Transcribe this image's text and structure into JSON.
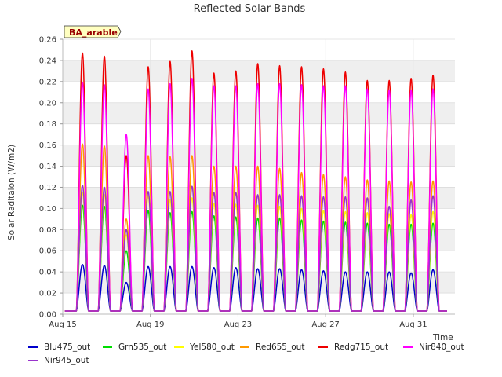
{
  "chart_data": {
    "type": "line",
    "title": "Reflected Solar Bands",
    "xlabel": "Time",
    "ylabel": "Solar Raditaion (W/m2)",
    "annotation": "BA_arable",
    "ylim": [
      0,
      0.26
    ],
    "yticks": [
      "0.00",
      "0.02",
      "0.04",
      "0.06",
      "0.08",
      "0.10",
      "0.12",
      "0.14",
      "0.16",
      "0.18",
      "0.20",
      "0.22",
      "0.24",
      "0.26"
    ],
    "xlim": [
      15,
      32.9
    ],
    "xticks": [
      {
        "day": 15,
        "label": "Aug 15"
      },
      {
        "day": 19,
        "label": "Aug 19"
      },
      {
        "day": 23,
        "label": "Aug 23"
      },
      {
        "day": 27,
        "label": "Aug 27"
      },
      {
        "day": 31,
        "label": "Aug 31"
      }
    ],
    "grid": "horizontal bands",
    "legend_position": "bottom",
    "days": [
      15.9,
      16.9,
      17.9,
      18.9,
      19.9,
      20.9,
      21.9,
      22.9,
      23.9,
      24.9,
      25.9,
      26.9,
      27.9,
      28.9,
      29.9,
      30.9,
      31.9
    ],
    "series": [
      {
        "name": "Blu475_out",
        "color": "#0000cc",
        "peaks": [
          0.047,
          0.046,
          0.03,
          0.045,
          0.045,
          0.045,
          0.044,
          0.044,
          0.043,
          0.043,
          0.042,
          0.041,
          0.04,
          0.04,
          0.04,
          0.039,
          0.042
        ]
      },
      {
        "name": "Grn535_out",
        "color": "#00dd00",
        "peaks": [
          0.103,
          0.102,
          0.06,
          0.098,
          0.096,
          0.097,
          0.093,
          0.092,
          0.091,
          0.091,
          0.089,
          0.088,
          0.087,
          0.086,
          0.085,
          0.085,
          0.086
        ]
      },
      {
        "name": "Yel580_out",
        "color": "#ffff00",
        "peaks": [
          0.115,
          0.113,
          0.075,
          0.112,
          0.108,
          0.11,
          0.105,
          0.104,
          0.103,
          0.102,
          0.1,
          0.098,
          0.097,
          0.096,
          0.095,
          0.094,
          0.097
        ]
      },
      {
        "name": "Red655_out",
        "color": "#ff9900",
        "peaks": [
          0.161,
          0.159,
          0.09,
          0.15,
          0.149,
          0.15,
          0.14,
          0.14,
          0.14,
          0.138,
          0.134,
          0.132,
          0.13,
          0.127,
          0.126,
          0.125,
          0.126
        ]
      },
      {
        "name": "Redg715_out",
        "color": "#ee0000",
        "peaks": [
          0.247,
          0.244,
          0.15,
          0.234,
          0.239,
          0.249,
          0.228,
          0.23,
          0.237,
          0.235,
          0.234,
          0.232,
          0.229,
          0.221,
          0.221,
          0.223,
          0.226
        ]
      },
      {
        "name": "Nir840_out",
        "color": "#ff00ff",
        "peaks": [
          0.219,
          0.217,
          0.17,
          0.213,
          0.218,
          0.223,
          0.216,
          0.216,
          0.218,
          0.218,
          0.217,
          0.216,
          0.216,
          0.213,
          0.212,
          0.212,
          0.213
        ]
      },
      {
        "name": "Nir945_out",
        "color": "#9933cc",
        "peaks": [
          0.122,
          0.12,
          0.08,
          0.116,
          0.116,
          0.121,
          0.115,
          0.115,
          0.113,
          0.113,
          0.112,
          0.111,
          0.111,
          0.11,
          0.102,
          0.108,
          0.112
        ]
      }
    ]
  }
}
